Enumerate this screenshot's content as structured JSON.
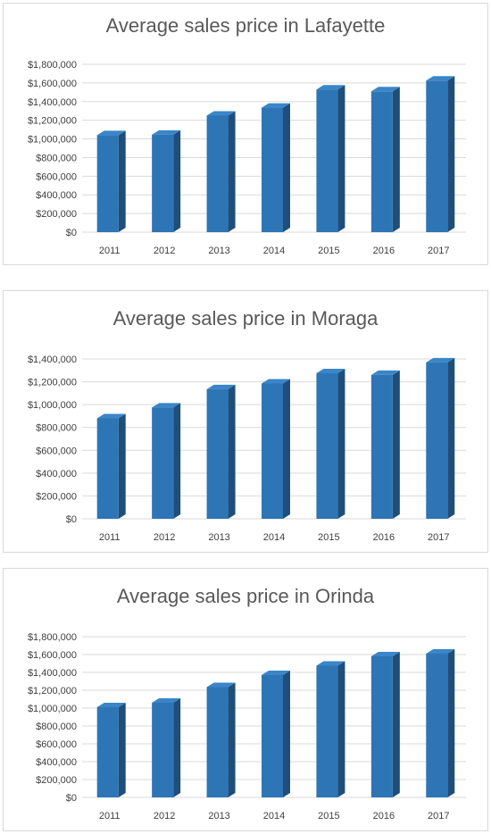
{
  "chart_data": [
    {
      "type": "bar",
      "title": "Average sales price in Lafayette",
      "categories": [
        "2011",
        "2012",
        "2013",
        "2014",
        "2015",
        "2016",
        "2017"
      ],
      "values": [
        1040000,
        1045000,
        1250000,
        1335000,
        1530000,
        1510000,
        1625000
      ],
      "ylim": [
        0,
        1800000
      ],
      "ytick_step": 200000,
      "yticks": [
        "$0",
        "$200,000",
        "$400,000",
        "$600,000",
        "$800,000",
        "$1,000,000",
        "$1,200,000",
        "$1,400,000",
        "$1,600,000",
        "$1,800,000"
      ],
      "xlabel": "",
      "ylabel": "",
      "grid": true,
      "legend": "none",
      "bar_color": "#2e75b6"
    },
    {
      "type": "bar",
      "title": "Average sales price in Moraga",
      "categories": [
        "2011",
        "2012",
        "2013",
        "2014",
        "2015",
        "2016",
        "2017"
      ],
      "values": [
        880000,
        975000,
        1135000,
        1185000,
        1275000,
        1260000,
        1370000
      ],
      "ylim": [
        0,
        1400000
      ],
      "ytick_step": 200000,
      "yticks": [
        "$0",
        "$200,000",
        "$400,000",
        "$600,000",
        "$800,000",
        "$1,000,000",
        "$1,200,000",
        "$1,400,000"
      ],
      "xlabel": "",
      "ylabel": "",
      "grid": true,
      "legend": "none",
      "bar_color": "#2e75b6"
    },
    {
      "type": "bar",
      "title": "Average sales price in Orinda",
      "categories": [
        "2011",
        "2012",
        "2013",
        "2014",
        "2015",
        "2016",
        "2017"
      ],
      "values": [
        1010000,
        1060000,
        1235000,
        1370000,
        1475000,
        1580000,
        1610000
      ],
      "ylim": [
        0,
        1800000
      ],
      "ytick_step": 200000,
      "yticks": [
        "$0",
        "$200,000",
        "$400,000",
        "$600,000",
        "$800,000",
        "$1,000,000",
        "$1,200,000",
        "$1,400,000",
        "$1,600,000",
        "$1,800,000"
      ],
      "xlabel": "",
      "ylabel": "",
      "grid": true,
      "legend": "none",
      "bar_color": "#2e75b6"
    }
  ]
}
